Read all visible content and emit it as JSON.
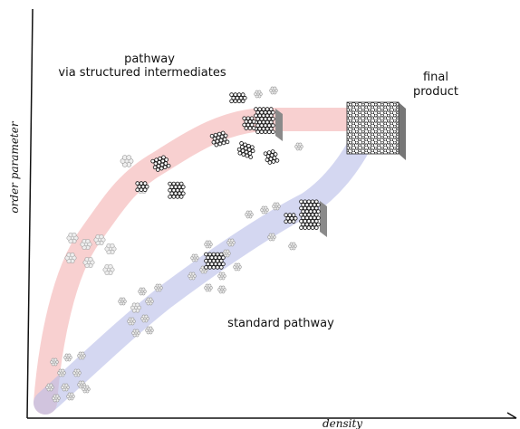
{
  "annotations": {
    "intermediate_pathway": [
      "pathway",
      "via structured intermediates"
    ],
    "final_product": [
      "final",
      "product"
    ],
    "standard_pathway": "standard pathway"
  },
  "axes": {
    "y": "order parameter",
    "x": "density"
  }
}
